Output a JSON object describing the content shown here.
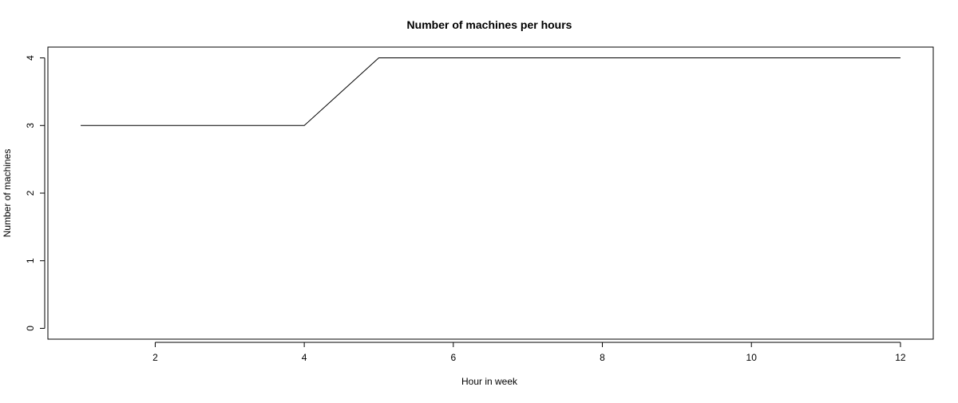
{
  "chart_data": {
    "type": "line",
    "title": "Number of machines per hours",
    "xlabel": "Hour in week",
    "ylabel": "Number of machines",
    "x": [
      1,
      2,
      3,
      4,
      5,
      6,
      7,
      8,
      9,
      10,
      11,
      12
    ],
    "series": [
      {
        "values": [
          3,
          3,
          3,
          3,
          4,
          4,
          4,
          4,
          4,
          4,
          4,
          4
        ]
      }
    ],
    "xlim": [
      0.56,
      12.44
    ],
    "ylim": [
      -0.16,
      4.16
    ],
    "xticks": [
      2,
      4,
      6,
      8,
      10,
      12
    ],
    "yticks": [
      0,
      1,
      2,
      3,
      4
    ],
    "grid": false,
    "line_color": "#000000"
  }
}
